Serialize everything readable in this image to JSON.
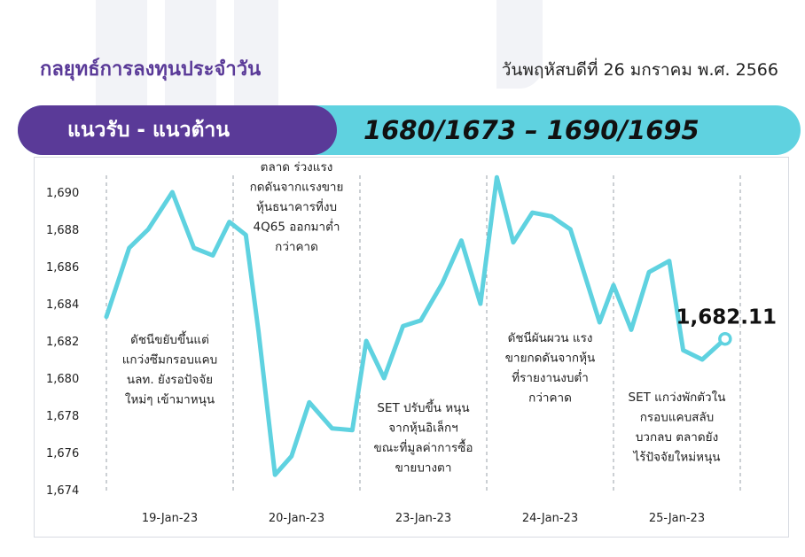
{
  "header": {
    "title": "กลยุทธ์การลงทุนประจำวัน",
    "date": "วันพฤหัสบดีที่ 26 มกราคม พ.ศ. 2566"
  },
  "band": {
    "label": "แนวรับ - แนวต้าน",
    "value": "1680/1673 – 1690/1695"
  },
  "colors": {
    "purple": "#5a3a98",
    "cyan": "#5fd2e0",
    "line": "#5fd2e0"
  },
  "chart_data": {
    "type": "line",
    "title": "",
    "xlabel": "",
    "ylabel": "",
    "categories": [
      "19-Jan-23",
      "20-Jan-23",
      "23-Jan-23",
      "24-Jan-23",
      "25-Jan-23"
    ],
    "y_ticks": [
      "1,674",
      "1,676",
      "1,678",
      "1,680",
      "1,682",
      "1,684",
      "1,686",
      "1,688",
      "1,690"
    ],
    "ylim": [
      1674,
      1690
    ],
    "grid": false,
    "series": [
      {
        "values": [
          [
            0,
            1683.3
          ],
          [
            0.18,
            1687.0
          ],
          [
            0.33,
            1688.0
          ],
          [
            0.52,
            1690.0
          ],
          [
            0.69,
            1687.0
          ],
          [
            0.84,
            1686.6
          ],
          [
            0.97,
            1688.4
          ],
          [
            1.1,
            1687.7
          ],
          [
            1.2,
            1682.5
          ],
          [
            1.33,
            1674.8
          ],
          [
            1.46,
            1675.8
          ],
          [
            1.6,
            1678.7
          ],
          [
            1.78,
            1677.3
          ],
          [
            1.94,
            1677.2
          ],
          [
            2.05,
            1682.0
          ],
          [
            2.19,
            1680.0
          ],
          [
            2.34,
            1682.8
          ],
          [
            2.48,
            1683.1
          ],
          [
            2.65,
            1685.1
          ],
          [
            2.8,
            1687.4
          ],
          [
            2.95,
            1684.0
          ],
          [
            3.08,
            1690.8
          ],
          [
            3.21,
            1687.3
          ],
          [
            3.36,
            1688.9
          ],
          [
            3.51,
            1688.7
          ],
          [
            3.66,
            1688.0
          ],
          [
            3.89,
            1683.0
          ],
          [
            4.0,
            1685.0
          ],
          [
            4.14,
            1682.6
          ],
          [
            4.28,
            1685.7
          ],
          [
            4.44,
            1686.3
          ],
          [
            4.55,
            1681.5
          ],
          [
            4.7,
            1681.0
          ],
          [
            4.88,
            1682.11
          ]
        ]
      }
    ],
    "last_value_label": "1,682.11",
    "annotations": [
      {
        "lines": [
          "ดัชนีขยับขึ้นแต่",
          "แกว่งซึมกรอบแคบ",
          "นลท. ยังรอปัจจัย",
          "ใหม่ๆ เข้ามาหนุน"
        ]
      },
      {
        "lines": [
          "ตลาด ร่วงแรง",
          "กดดันจากแรงขาย",
          "หุ้นธนาคารที่งบ",
          "4Q65 ออกมาต่ำ",
          "กว่าคาด"
        ]
      },
      {
        "lines": [
          "SET ปรับขึ้น หนุน",
          "จากหุ้นอิเล็กฯ",
          "ขณะที่มูลค่าการซื้อ",
          "ขายบางตา"
        ]
      },
      {
        "lines": [
          "ดัชนีผันผวน แรง",
          "ขายกดดันจากหุ้น",
          "ที่รายงานงบต่ำ",
          "กว่าคาด"
        ]
      },
      {
        "lines": [
          "SET แกว่งพักตัวใน",
          "กรอบแคบสลับ",
          "บวกลบ ตลาดยัง",
          "ไร้ปัจจัยใหม่หนุน"
        ]
      }
    ]
  }
}
